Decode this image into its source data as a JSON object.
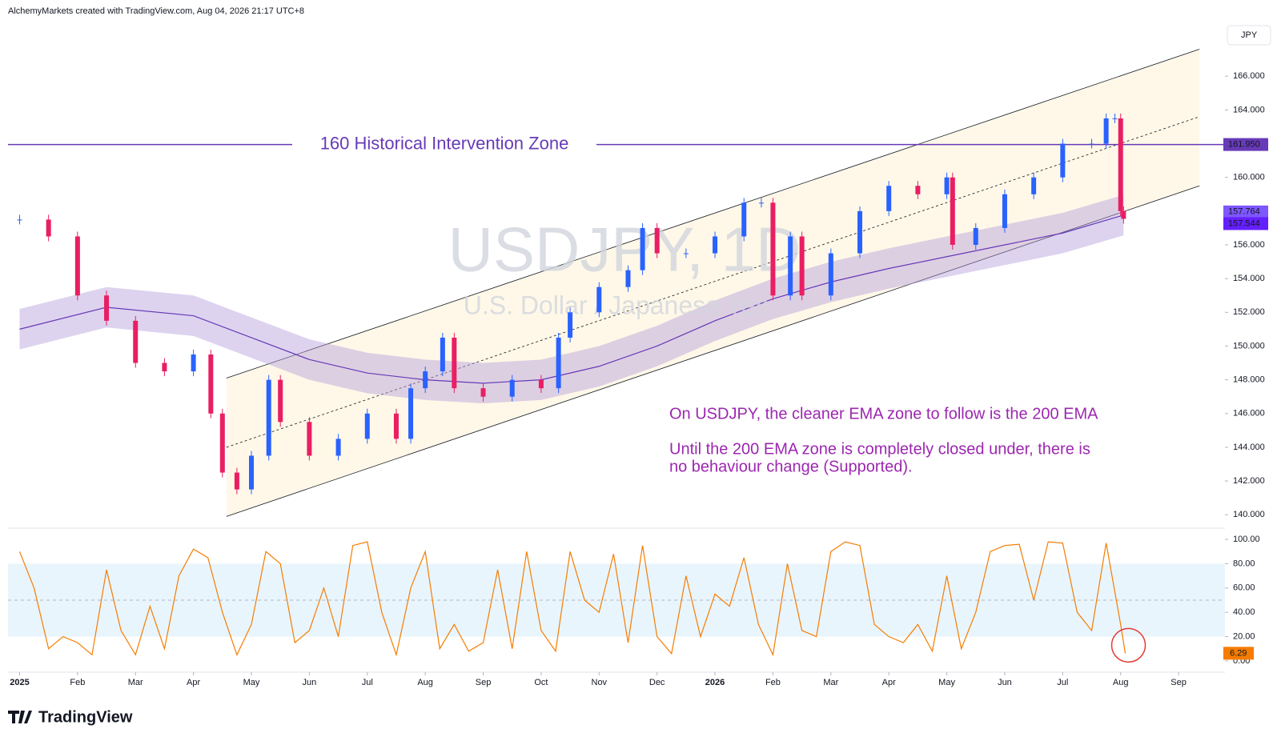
{
  "chart_data": {
    "type": "candlestick",
    "header": "AlchemyMarkets created with TradingView.com, Aug 04, 2026 21:17 UTC+8",
    "currency": "JPY",
    "watermark": "USDJPY, 1D",
    "watermark_subtitle": "U.S. Dollar / Japanese Yen",
    "brand": "TradingView",
    "annotations": [
      "On USDJPY, the cleaner EMA zone to follow is the 200 EMA",
      "Until the 200 EMA zone is completely closed under, there is",
      "no behaviour change (Supported)."
    ],
    "hline": {
      "value": 161.95,
      "label": "160 Historical Intervention Zone",
      "color": "#673ab7"
    },
    "xlim": [
      -0.2,
      20.8
    ],
    "xticks": [
      {
        "value": 0,
        "label": "2025"
      },
      {
        "value": 1,
        "label": "Feb"
      },
      {
        "value": 2,
        "label": "Mar"
      },
      {
        "value": 3,
        "label": "Apr"
      },
      {
        "value": 4,
        "label": "May"
      },
      {
        "value": 5,
        "label": "Jun"
      },
      {
        "value": 6,
        "label": "Jul"
      },
      {
        "value": 7,
        "label": "Aug"
      },
      {
        "value": 8,
        "label": "Sep"
      },
      {
        "value": 9,
        "label": "Oct"
      },
      {
        "value": 10,
        "label": "Nov"
      },
      {
        "value": 11,
        "label": "Dec"
      },
      {
        "value": 12,
        "label": "2026"
      },
      {
        "value": 13,
        "label": "Feb"
      },
      {
        "value": 14,
        "label": "Mar"
      },
      {
        "value": 15,
        "label": "Apr"
      },
      {
        "value": 16,
        "label": "May"
      },
      {
        "value": 17,
        "label": "Jun"
      },
      {
        "value": 18,
        "label": "Jul"
      },
      {
        "value": 19,
        "label": "Aug"
      },
      {
        "value": 20,
        "label": "Sep"
      }
    ],
    "ylim": [
      139.3,
      169
    ],
    "yticks": [
      {
        "value": 140,
        "label": "140.000"
      },
      {
        "value": 142,
        "label": "142.000"
      },
      {
        "value": 144,
        "label": "144.000"
      },
      {
        "value": 146,
        "label": "146.000"
      },
      {
        "value": 148,
        "label": "148.000"
      },
      {
        "value": 150,
        "label": "150.000"
      },
      {
        "value": 152,
        "label": "152.000"
      },
      {
        "value": 154,
        "label": "154.000"
      },
      {
        "value": 156,
        "label": "156.000"
      },
      {
        "value": 158,
        "label": "158.000"
      },
      {
        "value": 160,
        "label": "160.000"
      },
      {
        "value": 162,
        "label": "162.000"
      },
      {
        "value": 164,
        "label": "164.000"
      },
      {
        "value": 166,
        "label": "166.000"
      }
    ],
    "up_color": "#2962ff",
    "down_color": "#e91e63",
    "x": [
      0,
      0.5,
      1,
      1.5,
      2,
      2.5,
      3,
      3.3,
      3.5,
      3.75,
      4,
      4.3,
      4.5,
      5,
      5.5,
      6,
      6.5,
      6.75,
      7,
      7.3,
      7.5,
      8,
      8.5,
      9,
      9.3,
      9.5,
      10,
      10.5,
      10.75,
      11,
      11.5,
      12,
      12.5,
      12.8,
      13,
      13.3,
      13.5,
      14,
      14.5,
      15,
      15.5,
      16,
      16.1,
      16.5,
      17,
      17.5,
      18,
      18.5,
      18.75,
      18.9,
      19,
      19.05
    ],
    "close": [
      157.5,
      156.5,
      153,
      151.5,
      149,
      148.5,
      149.5,
      146,
      142.5,
      141.5,
      143.5,
      148,
      145.5,
      143.5,
      144.5,
      146,
      144.5,
      147.5,
      148.5,
      150.5,
      147.5,
      147,
      148,
      147.5,
      150.5,
      152,
      153.5,
      154.5,
      157,
      155.5,
      155.5,
      156.5,
      158.5,
      158.5,
      153,
      156.5,
      153,
      155.5,
      158,
      159.5,
      159,
      160,
      156,
      157,
      159,
      160,
      162,
      162,
      163.5,
      163.5,
      158,
      157.544
    ],
    "ema": {
      "name": "200 EMA",
      "color": "#673ab7",
      "band_width": 1.2,
      "x": [
        0,
        1.5,
        3,
        4,
        5,
        6,
        7,
        8,
        9,
        10,
        11,
        12,
        13,
        14,
        15,
        16,
        17,
        18,
        19.05
      ],
      "values": [
        151,
        152.3,
        151.8,
        150.5,
        149.2,
        148.4,
        148,
        147.8,
        148,
        148.8,
        150,
        151.5,
        152.8,
        153.8,
        154.6,
        155.3,
        156,
        156.7,
        157.764
      ]
    },
    "channel": {
      "upper": [
        [
          3.57,
          148.1
        ],
        [
          20.36,
          167.6
        ]
      ],
      "middle": [
        [
          3.57,
          144
        ],
        [
          20.36,
          163.6
        ]
      ],
      "lower": [
        [
          3.57,
          139.9
        ],
        [
          20.36,
          159.5
        ]
      ]
    },
    "price_labels": [
      {
        "value": 161.95,
        "label": "161.950",
        "color": "#673ab7"
      },
      {
        "value": 157.764,
        "label": "157.764",
        "color": "#7e57ff"
      },
      {
        "value": 157.544,
        "label": "157.544",
        "color": "#651fff"
      }
    ],
    "stoch": {
      "color": "#f57c00",
      "band": [
        20,
        80
      ],
      "mid": 50,
      "ylim": [
        -6,
        106
      ],
      "yticks": [
        {
          "value": 0,
          "label": "0.00"
        },
        {
          "value": 20,
          "label": "20.00"
        },
        {
          "value": 40,
          "label": "40.00"
        },
        {
          "value": 60,
          "label": "60.00"
        },
        {
          "value": 80,
          "label": "80.00"
        },
        {
          "value": 100,
          "label": "100.00"
        }
      ],
      "last_label": "6.29",
      "x": [
        0,
        0.25,
        0.5,
        0.75,
        1,
        1.25,
        1.5,
        1.75,
        2,
        2.25,
        2.5,
        2.75,
        3,
        3.25,
        3.5,
        3.75,
        4,
        4.25,
        4.5,
        4.75,
        5,
        5.25,
        5.5,
        5.75,
        6,
        6.25,
        6.5,
        6.75,
        7,
        7.25,
        7.5,
        7.75,
        8,
        8.25,
        8.5,
        8.75,
        9,
        9.25,
        9.5,
        9.75,
        10,
        10.25,
        10.5,
        10.75,
        11,
        11.25,
        11.5,
        11.75,
        12,
        12.25,
        12.5,
        12.75,
        13,
        13.25,
        13.5,
        13.75,
        14,
        14.25,
        14.5,
        14.75,
        15,
        15.25,
        15.5,
        15.75,
        16,
        16.25,
        16.5,
        16.75,
        17,
        17.25,
        17.5,
        17.75,
        18,
        18.25,
        18.5,
        18.75,
        19,
        19.08
      ],
      "values": [
        90,
        60,
        10,
        20,
        15,
        5,
        75,
        25,
        5,
        45,
        10,
        70,
        92,
        85,
        40,
        5,
        30,
        90,
        80,
        15,
        25,
        60,
        20,
        95,
        98,
        40,
        5,
        60,
        90,
        10,
        30,
        8,
        15,
        75,
        10,
        90,
        25,
        8,
        90,
        50,
        40,
        88,
        15,
        95,
        20,
        6,
        70,
        20,
        55,
        45,
        85,
        30,
        5,
        80,
        25,
        20,
        90,
        98,
        95,
        30,
        20,
        15,
        30,
        8,
        70,
        10,
        40,
        90,
        95,
        96,
        50,
        98,
        97,
        40,
        25,
        97,
        30,
        6.29
      ]
    }
  }
}
